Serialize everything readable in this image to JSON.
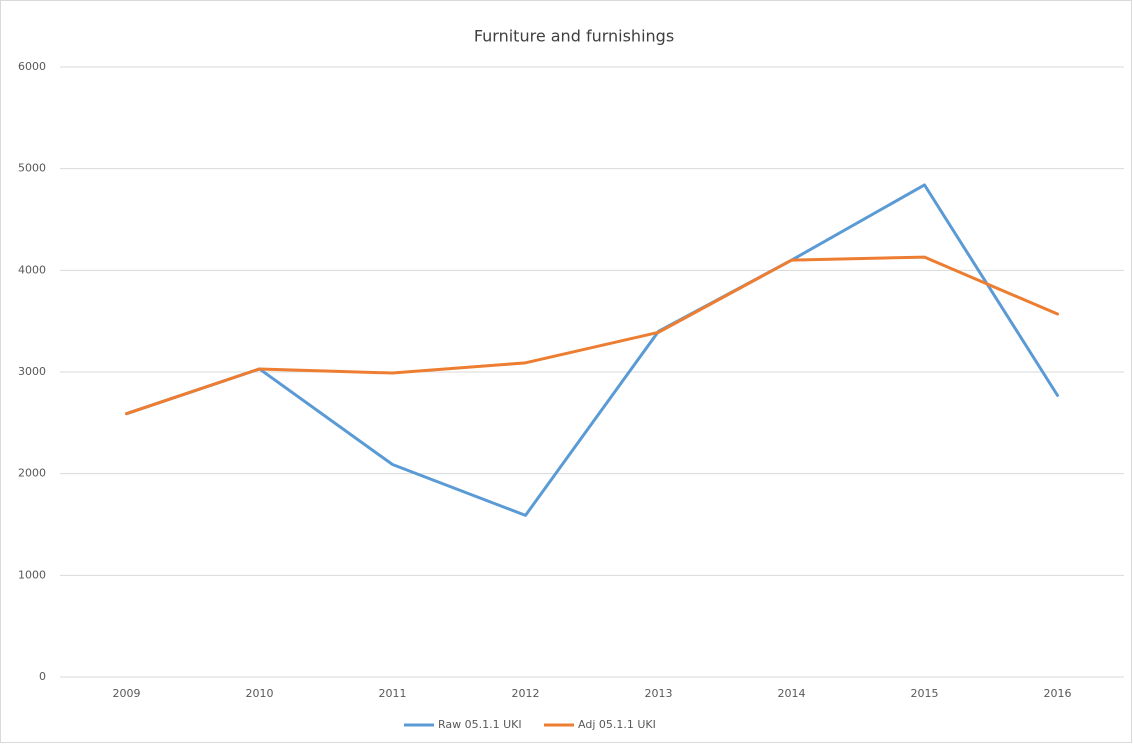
{
  "chart_data": {
    "type": "line",
    "title": "Furniture and furnishings",
    "categories": [
      "2009",
      "2010",
      "2011",
      "2012",
      "2013",
      "2014",
      "2015",
      "2016"
    ],
    "series": [
      {
        "name": "Raw 05.1.1 UKI",
        "color": "#5b9bd5",
        "values": [
          2590,
          3030,
          2090,
          1590,
          3400,
          4100,
          4840,
          2770
        ]
      },
      {
        "name": "Adj 05.1.1 UKI",
        "color": "#ed7d31",
        "values": [
          2590,
          3030,
          2990,
          3090,
          3390,
          4100,
          4130,
          3570
        ]
      }
    ],
    "ylim": [
      0,
      6000
    ],
    "yticks": [
      0,
      1000,
      2000,
      3000,
      4000,
      5000,
      6000
    ],
    "grid": true,
    "legend": "bottom"
  }
}
